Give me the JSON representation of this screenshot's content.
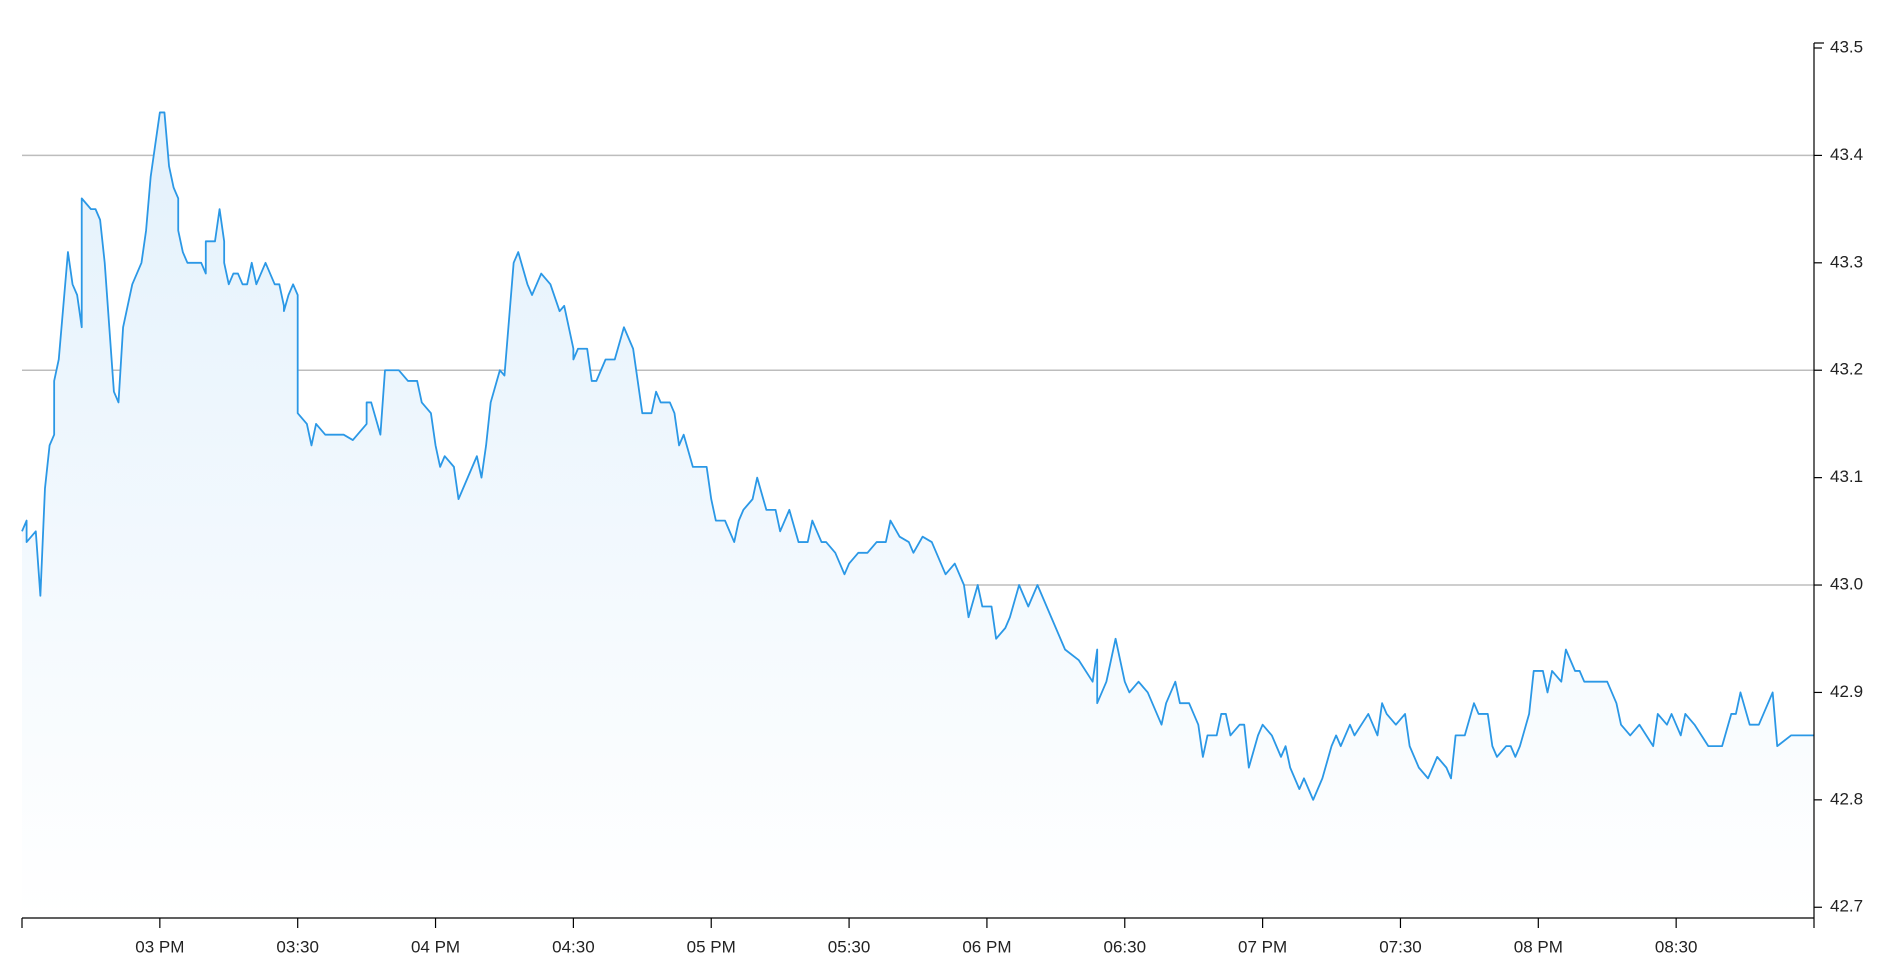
{
  "chart_data": {
    "type": "area",
    "color": "#2b98e6",
    "fill_color": "#e3f1fc",
    "xlim": [
      870,
      1260
    ],
    "xticks": [
      {
        "value": 900,
        "label": "03 PM"
      },
      {
        "value": 930,
        "label": "03:30"
      },
      {
        "value": 960,
        "label": "04 PM"
      },
      {
        "value": 990,
        "label": "04:30"
      },
      {
        "value": 1020,
        "label": "05 PM"
      },
      {
        "value": 1050,
        "label": "05:30"
      },
      {
        "value": 1080,
        "label": "06 PM"
      },
      {
        "value": 1110,
        "label": "06:30"
      },
      {
        "value": 1140,
        "label": "07 PM"
      },
      {
        "value": 1170,
        "label": "07:30"
      },
      {
        "value": 1200,
        "label": "08 PM"
      },
      {
        "value": 1230,
        "label": "08:30"
      }
    ],
    "ylim": [
      42.69,
      43.5
    ],
    "yticks": [
      42.7,
      42.8,
      42.9,
      {
        "value": 43,
        "label": "43.0"
      },
      43.1,
      43.2,
      43.3,
      43.4,
      43.5
    ],
    "grid_ticks": [
      42.8,
      43,
      43.2,
      43.4
    ],
    "x": [
      870,
      871,
      871,
      873,
      874,
      875,
      876,
      877,
      877,
      878,
      879,
      880,
      881,
      882,
      883,
      883,
      884,
      885,
      886,
      887,
      888,
      889,
      890,
      891,
      892,
      893,
      894,
      896,
      897,
      898,
      899,
      900,
      901,
      902,
      903,
      904,
      904,
      905,
      906,
      908,
      909,
      910,
      910,
      912,
      913,
      914,
      914,
      915,
      916,
      917,
      918,
      919,
      920,
      921,
      923,
      924,
      925,
      926,
      927,
      927,
      928,
      929,
      930,
      930,
      932,
      933,
      934,
      936,
      937,
      938,
      940,
      942,
      943,
      945,
      945,
      946,
      948,
      949,
      952,
      954,
      956,
      957,
      959,
      960,
      961,
      962,
      964,
      965,
      967,
      969,
      970,
      971,
      972,
      974,
      975,
      977,
      978,
      980,
      981,
      983,
      985,
      987,
      988,
      990,
      990,
      991,
      993,
      994,
      995,
      997,
      999,
      1001,
      1003,
      1005,
      1007,
      1008,
      1009,
      1011,
      1012,
      1013,
      1014,
      1016,
      1019,
      1020,
      1021,
      1023,
      1025,
      1026,
      1027,
      1029,
      1030,
      1032,
      1034,
      1035,
      1037,
      1039,
      1041,
      1042,
      1044,
      1045,
      1047,
      1049,
      1050,
      1052,
      1054,
      1056,
      1058,
      1059,
      1061,
      1063,
      1064,
      1066,
      1068,
      1069,
      1071,
      1073,
      1075,
      1076,
      1078,
      1079,
      1081,
      1082,
      1084,
      1085,
      1087,
      1089,
      1090,
      1091,
      1094,
      1097,
      1100,
      1103,
      1104,
      1104,
      1106,
      1108,
      1110,
      1111,
      1113,
      1115,
      1118,
      1119,
      1121,
      1122,
      1124,
      1126,
      1127,
      1128,
      1130,
      1131,
      1132,
      1133,
      1135,
      1136,
      1137,
      1139,
      1140,
      1142,
      1144,
      1145,
      1146,
      1148,
      1149,
      1151,
      1153,
      1155,
      1156,
      1157,
      1159,
      1160,
      1163,
      1165,
      1166,
      1167,
      1169,
      1171,
      1172,
      1174,
      1176,
      1178,
      1180,
      1181,
      1182,
      1184,
      1186,
      1187,
      1189,
      1190,
      1191,
      1193,
      1194,
      1195,
      1196,
      1198,
      1199,
      1201,
      1202,
      1203,
      1205,
      1206,
      1208,
      1209,
      1210,
      1212,
      1215,
      1217,
      1218,
      1220,
      1222,
      1225,
      1226,
      1228,
      1229,
      1231,
      1232,
      1234,
      1237,
      1240,
      1242,
      1243,
      1244,
      1246,
      1248,
      1251,
      1252,
      1255,
      1256,
      1260
    ],
    "values": [
      43.05,
      43.06,
      43.04,
      43.05,
      42.99,
      43.09,
      43.13,
      43.14,
      43.19,
      43.21,
      43.26,
      43.31,
      43.28,
      43.27,
      43.24,
      43.36,
      43.355,
      43.35,
      43.35,
      43.34,
      43.3,
      43.24,
      43.18,
      43.17,
      43.24,
      43.26,
      43.28,
      43.3,
      43.33,
      43.38,
      43.41,
      43.44,
      43.44,
      43.39,
      43.37,
      43.36,
      43.33,
      43.31,
      43.3,
      43.3,
      43.3,
      43.29,
      43.32,
      43.32,
      43.35,
      43.32,
      43.3,
      43.28,
      43.29,
      43.29,
      43.28,
      43.28,
      43.3,
      43.28,
      43.3,
      43.29,
      43.28,
      43.28,
      43.26,
      43.255,
      43.27,
      43.28,
      43.27,
      43.16,
      43.15,
      43.13,
      43.15,
      43.14,
      43.14,
      43.14,
      43.14,
      43.135,
      43.14,
      43.15,
      43.17,
      43.17,
      43.14,
      43.2,
      43.2,
      43.19,
      43.19,
      43.17,
      43.16,
      43.13,
      43.11,
      43.12,
      43.11,
      43.08,
      43.1,
      43.12,
      43.1,
      43.13,
      43.17,
      43.2,
      43.195,
      43.3,
      43.31,
      43.28,
      43.27,
      43.29,
      43.28,
      43.255,
      43.26,
      43.22,
      43.21,
      43.22,
      43.22,
      43.19,
      43.19,
      43.21,
      43.21,
      43.24,
      43.22,
      43.16,
      43.16,
      43.18,
      43.17,
      43.17,
      43.16,
      43.13,
      43.14,
      43.11,
      43.11,
      43.08,
      43.06,
      43.06,
      43.04,
      43.06,
      43.07,
      43.08,
      43.1,
      43.07,
      43.07,
      43.05,
      43.07,
      43.04,
      43.04,
      43.06,
      43.04,
      43.04,
      43.03,
      43.01,
      43.02,
      43.03,
      43.03,
      43.04,
      43.04,
      43.06,
      43.045,
      43.04,
      43.03,
      43.045,
      43.04,
      43.03,
      43.01,
      43.02,
      43,
      42.97,
      43,
      42.98,
      42.98,
      42.95,
      42.96,
      42.97,
      43,
      42.98,
      42.99,
      43,
      42.97,
      42.94,
      42.93,
      42.91,
      42.94,
      42.89,
      42.91,
      42.95,
      42.91,
      42.9,
      42.91,
      42.9,
      42.87,
      42.89,
      42.91,
      42.89,
      42.89,
      42.87,
      42.84,
      42.86,
      42.86,
      42.88,
      42.88,
      42.86,
      42.87,
      42.87,
      42.83,
      42.86,
      42.87,
      42.86,
      42.84,
      42.85,
      42.83,
      42.81,
      42.82,
      42.8,
      42.82,
      42.85,
      42.86,
      42.85,
      42.87,
      42.86,
      42.88,
      42.86,
      42.89,
      42.88,
      42.87,
      42.88,
      42.85,
      42.83,
      42.82,
      42.84,
      42.83,
      42.82,
      42.86,
      42.86,
      42.89,
      42.88,
      42.88,
      42.85,
      42.84,
      42.85,
      42.85,
      42.84,
      42.85,
      42.88,
      42.92,
      42.92,
      42.9,
      42.92,
      42.91,
      42.94,
      42.92,
      42.92,
      42.91,
      42.91,
      42.91,
      42.89,
      42.87,
      42.86,
      42.87,
      42.85,
      42.88,
      42.87,
      42.88,
      42.86,
      42.88,
      42.87,
      42.85,
      42.85,
      42.88,
      42.88,
      42.9,
      42.87,
      42.87,
      42.9,
      42.85,
      42.86,
      42.86,
      42.86
    ]
  }
}
